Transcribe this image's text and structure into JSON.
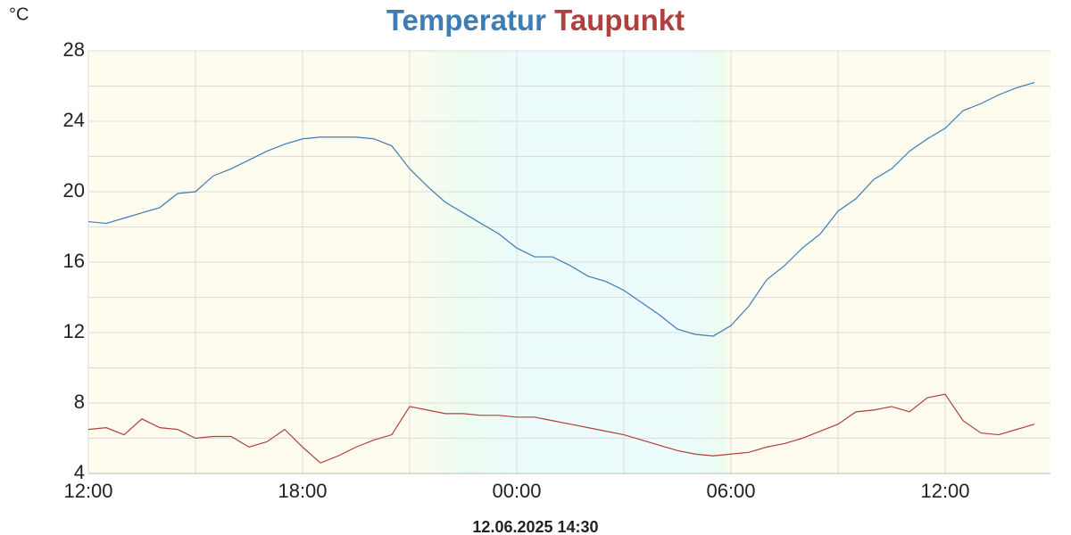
{
  "chart_data": {
    "type": "line",
    "unit": "°C",
    "footer": "12.06.2025 14:30",
    "x": [
      0,
      0.5,
      1,
      1.5,
      2,
      2.5,
      3,
      3.5,
      4,
      4.5,
      5,
      5.5,
      6,
      6.5,
      7,
      7.5,
      8,
      8.5,
      9,
      9.5,
      10,
      10.5,
      11,
      11.5,
      12,
      12.5,
      13,
      13.5,
      14,
      14.5,
      15,
      15.5,
      16,
      16.5,
      17,
      17.5,
      18,
      18.5,
      19,
      19.5,
      20,
      20.5,
      21,
      21.5,
      22,
      22.5,
      23,
      23.5,
      24,
      24.5,
      25,
      25.5,
      26,
      26.5
    ],
    "series": [
      {
        "name": "Temperatur",
        "color": "#3f7cb4",
        "values": [
          18.3,
          18.2,
          18.5,
          18.8,
          19.1,
          19.9,
          20.0,
          20.9,
          21.3,
          21.8,
          22.3,
          22.7,
          23.0,
          23.1,
          23.1,
          23.1,
          23.0,
          22.6,
          21.3,
          20.3,
          19.4,
          18.8,
          18.2,
          17.6,
          16.8,
          16.3,
          16.3,
          15.8,
          15.2,
          14.9,
          14.4,
          13.7,
          13.0,
          12.2,
          11.9,
          11.8,
          12.4,
          13.5,
          15.0,
          15.8,
          16.8,
          17.6,
          18.9,
          19.6,
          20.7,
          21.3,
          22.3,
          23.0,
          23.6,
          24.6,
          25.0,
          25.5,
          25.9,
          26.2
        ]
      },
      {
        "name": "Taupunkt",
        "color": "#b0403d",
        "values": [
          6.5,
          6.6,
          6.2,
          7.1,
          6.6,
          6.5,
          6.0,
          6.1,
          6.1,
          5.5,
          5.8,
          6.5,
          5.5,
          4.6,
          5.0,
          5.5,
          5.9,
          6.2,
          7.8,
          7.6,
          7.4,
          7.4,
          7.3,
          7.3,
          7.2,
          7.2,
          7.0,
          6.8,
          6.6,
          6.4,
          6.2,
          5.9,
          5.6,
          5.3,
          5.1,
          5.0,
          5.1,
          5.2,
          5.5,
          5.7,
          6.0,
          6.4,
          6.8,
          7.5,
          7.6,
          7.8,
          7.5,
          8.3,
          8.5,
          7.0,
          6.3,
          6.2,
          6.5,
          6.8
        ]
      }
    ],
    "xlim": [
      0,
      26.95
    ],
    "xticks": [
      {
        "value": 0,
        "label": "12:00"
      },
      {
        "value": 6,
        "label": "18:00"
      },
      {
        "value": 12,
        "label": "00:00"
      },
      {
        "value": 18,
        "label": "06:00"
      },
      {
        "value": 24,
        "label": "12:00"
      }
    ],
    "ylim": [
      4,
      28
    ],
    "yticks": [
      4,
      8,
      12,
      16,
      20,
      24,
      28
    ],
    "grid": true
  }
}
